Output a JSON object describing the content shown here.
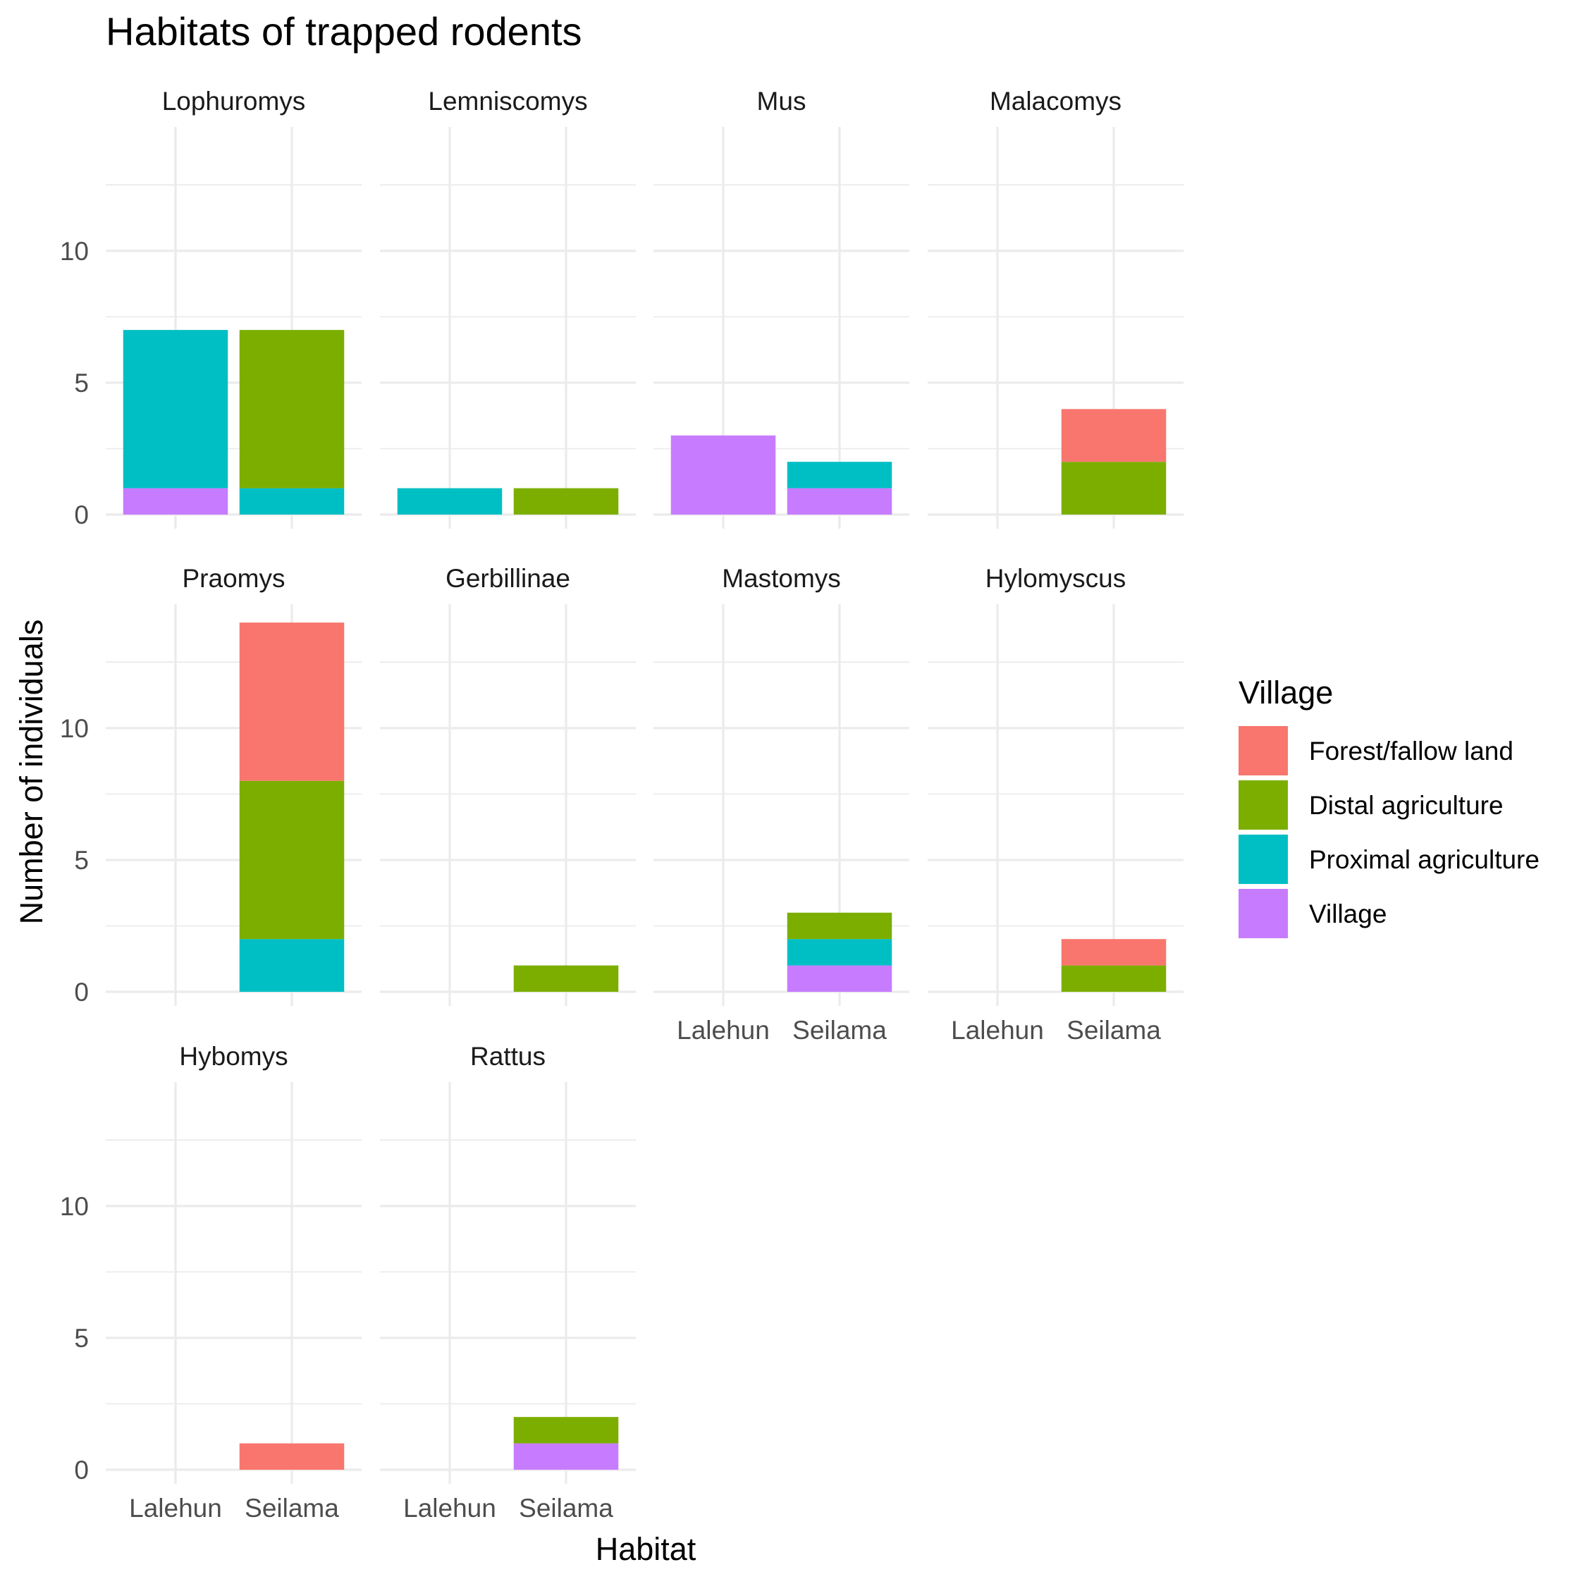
{
  "chart_data": {
    "type": "bar",
    "title": "Habitats of trapped rodents",
    "xlabel": "Habitat",
    "ylabel": "Number of individuals",
    "categories": [
      "Lalehun",
      "Seilama"
    ],
    "ylim": [
      0,
      14.7
    ],
    "y_ticks": [
      0,
      5,
      10
    ],
    "stacked": true,
    "grid": true,
    "legend": {
      "title": "Village",
      "position": "right",
      "entries": [
        {
          "name": "Forest/fallow land",
          "color": "#F8766D"
        },
        {
          "name": "Distal agriculture",
          "color": "#7CAE00"
        },
        {
          "name": "Proximal agriculture",
          "color": "#00BFC4"
        },
        {
          "name": "Village",
          "color": "#C77CFF"
        }
      ]
    },
    "series_order_bottom_to_top": [
      "Village",
      "Proximal agriculture",
      "Distal agriculture",
      "Forest/fallow land"
    ],
    "facets": [
      {
        "name": "Lophuromys",
        "values": {
          "Lalehun": {
            "Village": 1,
            "Proximal agriculture": 6,
            "Distal agriculture": 0,
            "Forest/fallow land": 0
          },
          "Seilama": {
            "Village": 0,
            "Proximal agriculture": 1,
            "Distal agriculture": 6,
            "Forest/fallow land": 0
          }
        }
      },
      {
        "name": "Lemniscomys",
        "values": {
          "Lalehun": {
            "Village": 0,
            "Proximal agriculture": 1,
            "Distal agriculture": 0,
            "Forest/fallow land": 0
          },
          "Seilama": {
            "Village": 0,
            "Proximal agriculture": 0,
            "Distal agriculture": 1,
            "Forest/fallow land": 0
          }
        }
      },
      {
        "name": "Mus",
        "values": {
          "Lalehun": {
            "Village": 3,
            "Proximal agriculture": 0,
            "Distal agriculture": 0,
            "Forest/fallow land": 0
          },
          "Seilama": {
            "Village": 1,
            "Proximal agriculture": 1,
            "Distal agriculture": 0,
            "Forest/fallow land": 0
          }
        }
      },
      {
        "name": "Malacomys",
        "values": {
          "Lalehun": {
            "Village": 0,
            "Proximal agriculture": 0,
            "Distal agriculture": 0,
            "Forest/fallow land": 0
          },
          "Seilama": {
            "Village": 0,
            "Proximal agriculture": 0,
            "Distal agriculture": 2,
            "Forest/fallow land": 2
          }
        }
      },
      {
        "name": "Praomys",
        "values": {
          "Lalehun": {
            "Village": 0,
            "Proximal agriculture": 0,
            "Distal agriculture": 0,
            "Forest/fallow land": 0
          },
          "Seilama": {
            "Village": 0,
            "Proximal agriculture": 2,
            "Distal agriculture": 6,
            "Forest/fallow land": 6
          }
        }
      },
      {
        "name": "Gerbillinae",
        "values": {
          "Lalehun": {
            "Village": 0,
            "Proximal agriculture": 0,
            "Distal agriculture": 0,
            "Forest/fallow land": 0
          },
          "Seilama": {
            "Village": 0,
            "Proximal agriculture": 0,
            "Distal agriculture": 1,
            "Forest/fallow land": 0
          }
        }
      },
      {
        "name": "Mastomys",
        "values": {
          "Lalehun": {
            "Village": 0,
            "Proximal agriculture": 0,
            "Distal agriculture": 0,
            "Forest/fallow land": 0
          },
          "Seilama": {
            "Village": 1,
            "Proximal agriculture": 1,
            "Distal agriculture": 1,
            "Forest/fallow land": 0
          }
        }
      },
      {
        "name": "Hylomyscus",
        "values": {
          "Lalehun": {
            "Village": 0,
            "Proximal agriculture": 0,
            "Distal agriculture": 0,
            "Forest/fallow land": 0
          },
          "Seilama": {
            "Village": 0,
            "Proximal agriculture": 0,
            "Distal agriculture": 1,
            "Forest/fallow land": 1
          }
        }
      },
      {
        "name": "Hybomys",
        "values": {
          "Lalehun": {
            "Village": 0,
            "Proximal agriculture": 0,
            "Distal agriculture": 0,
            "Forest/fallow land": 0
          },
          "Seilama": {
            "Village": 0,
            "Proximal agriculture": 0,
            "Distal agriculture": 0,
            "Forest/fallow land": 1
          }
        }
      },
      {
        "name": "Rattus",
        "values": {
          "Lalehun": {
            "Village": 0,
            "Proximal agriculture": 0,
            "Distal agriculture": 0,
            "Forest/fallow land": 0
          },
          "Seilama": {
            "Village": 1,
            "Proximal agriculture": 0,
            "Distal agriculture": 1,
            "Forest/fallow land": 0
          }
        }
      }
    ]
  }
}
